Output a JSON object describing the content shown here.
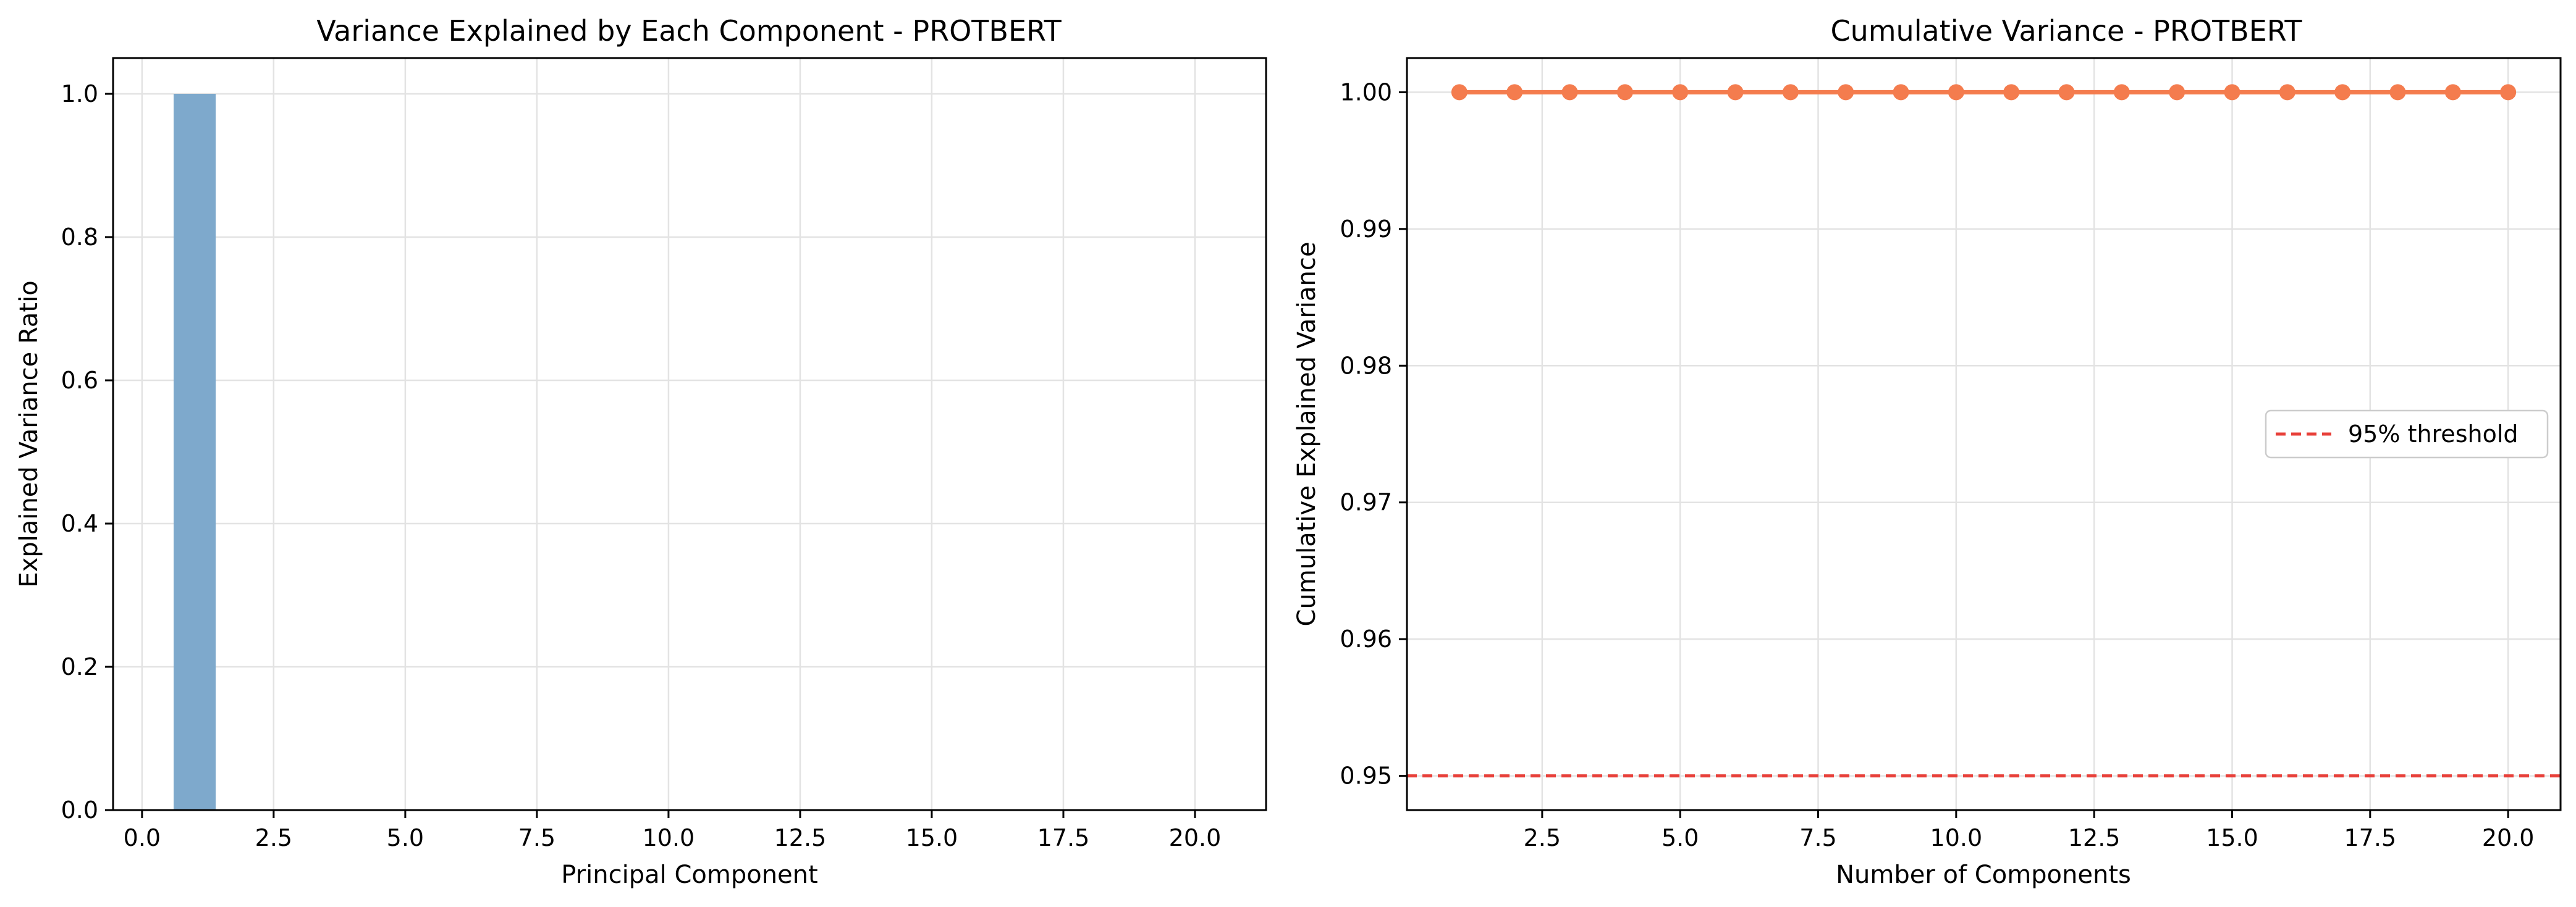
{
  "chart_data": [
    {
      "type": "bar",
      "title": "Variance Explained by Each Component - PROTBERT",
      "xlabel": "Principal Component",
      "ylabel": "Explained Variance Ratio",
      "x": [
        1,
        2,
        3,
        4,
        5,
        6,
        7,
        8,
        9,
        10,
        11,
        12,
        13,
        14,
        15,
        16,
        17,
        18,
        19,
        20
      ],
      "values": [
        1.0,
        0,
        0,
        0,
        0,
        0,
        0,
        0,
        0,
        0,
        0,
        0,
        0,
        0,
        0,
        0,
        0,
        0,
        0,
        0
      ],
      "xlim": [
        -0.55,
        21.35
      ],
      "ylim": [
        0,
        1.05
      ],
      "xticks": [
        0,
        2.5,
        5,
        7.5,
        10,
        12.5,
        15,
        17.5,
        20
      ],
      "xtick_labels": [
        "0.0",
        "2.5",
        "5.0",
        "7.5",
        "10.0",
        "12.5",
        "15.0",
        "17.5",
        "20.0"
      ],
      "yticks": [
        0,
        0.2,
        0.4,
        0.6,
        0.8,
        1.0
      ],
      "ytick_labels": [
        "0.0",
        "0.2",
        "0.4",
        "0.6",
        "0.8",
        "1.0"
      ],
      "grid": true,
      "colors": {
        "bar": "#7ea9cc"
      }
    },
    {
      "type": "line",
      "title": "Cumulative Variance - PROTBERT",
      "xlabel": "Number of Components",
      "ylabel": "Cumulative Explained Variance",
      "x": [
        1,
        2,
        3,
        4,
        5,
        6,
        7,
        8,
        9,
        10,
        11,
        12,
        13,
        14,
        15,
        16,
        17,
        18,
        19,
        20
      ],
      "values": [
        1.0,
        1.0,
        1.0,
        1.0,
        1.0,
        1.0,
        1.0,
        1.0,
        1.0,
        1.0,
        1.0,
        1.0,
        1.0,
        1.0,
        1.0,
        1.0,
        1.0,
        1.0,
        1.0,
        1.0
      ],
      "threshold": {
        "value": 0.95,
        "label": "95% threshold"
      },
      "xlim": [
        0.05,
        20.95
      ],
      "ylim": [
        0.9475,
        1.0025
      ],
      "xticks": [
        2.5,
        5,
        7.5,
        10,
        12.5,
        15,
        17.5,
        20
      ],
      "xtick_labels": [
        "2.5",
        "5.0",
        "7.5",
        "10.0",
        "12.5",
        "15.0",
        "17.5",
        "20.0"
      ],
      "yticks": [
        0.95,
        0.96,
        0.97,
        0.98,
        0.99,
        1.0
      ],
      "ytick_labels": [
        "0.95",
        "0.96",
        "0.97",
        "0.98",
        "0.99",
        "1.00"
      ],
      "grid": true,
      "legend": "center-right",
      "colors": {
        "line": "#f47c4e",
        "threshold": "#e8403a"
      }
    }
  ]
}
